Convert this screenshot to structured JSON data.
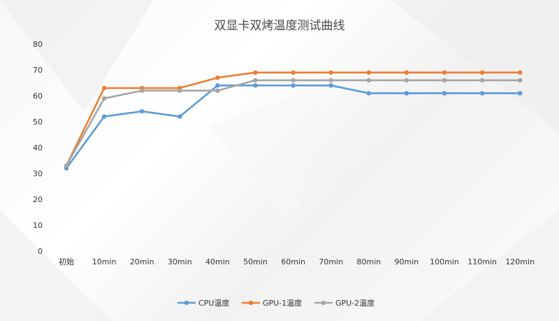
{
  "chart_data": {
    "type": "line",
    "title": "双显卡双烤温度测试曲线",
    "xlabel": "",
    "ylabel": "",
    "categories": [
      "初始",
      "10min",
      "20min",
      "30min",
      "40min",
      "50min",
      "60min",
      "70min",
      "80min",
      "90min",
      "100min",
      "110min",
      "120min"
    ],
    "ylim": [
      0,
      80
    ],
    "yticks": [
      "0",
      "10",
      "20",
      "30",
      "40",
      "50",
      "60",
      "70",
      "80"
    ],
    "grid": false,
    "legend_position": "bottom",
    "series": [
      {
        "name": "CPU温度",
        "color": "#5b9bd5",
        "values": [
          32,
          52,
          54,
          52,
          64,
          64,
          64,
          64,
          61,
          61,
          61,
          61,
          61
        ]
      },
      {
        "name": "GPU-1温度",
        "color": "#ed7d31",
        "values": [
          33,
          63,
          63,
          63,
          67,
          69,
          69,
          69,
          69,
          69,
          69,
          69,
          69
        ]
      },
      {
        "name": "GPU-2温度",
        "color": "#a5a5a5",
        "values": [
          33,
          59,
          62,
          62,
          62,
          66,
          66,
          66,
          66,
          66,
          66,
          66,
          66
        ]
      }
    ]
  }
}
